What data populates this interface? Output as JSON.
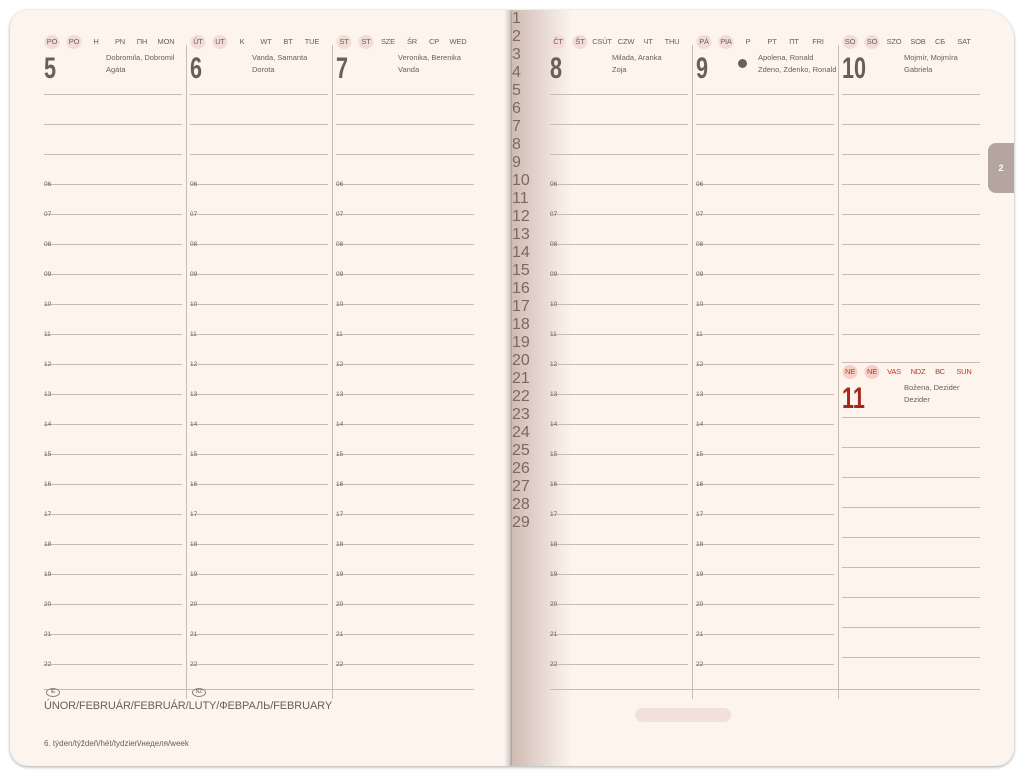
{
  "hours": [
    "06",
    "07",
    "08",
    "09",
    "10",
    "11",
    "12",
    "13",
    "14",
    "15",
    "16",
    "17",
    "18",
    "19",
    "20",
    "21",
    "22"
  ],
  "days": [
    {
      "num": "5",
      "labels": [
        "PO",
        "PO",
        "H",
        "PN",
        "ПН",
        "MON"
      ],
      "holiday_idx": [
        0,
        1
      ],
      "names": [
        "Dobromila, Dobromil",
        "Agáta"
      ]
    },
    {
      "num": "6",
      "labels": [
        "ÚT",
        "UT",
        "K",
        "WT",
        "BT",
        "TUE"
      ],
      "holiday_idx": [
        0,
        1
      ],
      "names": [
        "Vanda, Samanta",
        "Dorota"
      ]
    },
    {
      "num": "7",
      "labels": [
        "ST",
        "ST",
        "SZE",
        "ŚR",
        "CP",
        "WED"
      ],
      "holiday_idx": [
        0,
        1
      ],
      "names": [
        "Veronika, Berenika",
        "Vanda"
      ]
    },
    {
      "num": "8",
      "labels": [
        "ČT",
        "ŠT",
        "CSÜT",
        "CZW",
        "ЧТ",
        "THU"
      ],
      "holiday_idx": [
        0,
        1
      ],
      "names": [
        "Milada, Aranka",
        "Zoja"
      ]
    },
    {
      "num": "9",
      "labels": [
        "PÁ",
        "PIA",
        "P",
        "PT",
        "ПТ",
        "FRI"
      ],
      "holiday_idx": [
        0,
        1
      ],
      "names": [
        "Apolena, Ronald",
        "Zdeno, Zdenko, Ronald"
      ],
      "moon": "new-moon-icon"
    },
    {
      "num": "10",
      "labels": [
        "SO",
        "SO",
        "SZO",
        "SOB",
        "СБ",
        "SAT"
      ],
      "holiday_idx": [
        0,
        1
      ],
      "names": [
        "Mojmír, Mojmíra",
        "Gabriela"
      ]
    },
    {
      "num": "11",
      "labels": [
        "NE",
        "NE",
        "VAS",
        "NDZ",
        "ВС",
        "SUN"
      ],
      "holiday_idx": [
        0,
        1
      ],
      "names": [
        "Božena, Dezider",
        "Dezider"
      ]
    }
  ],
  "badges": [
    "IE",
    "NZ"
  ],
  "month": "ÚNOR/FEBRUÁR/FEBRUÁR/LUTY/ФЕВРАЛЬ/FEBRUARY",
  "week": "6. týden/týždeň/hét/tydzień/неделя/week",
  "strip": {
    "days": [
      "1",
      "2",
      "3",
      "4",
      "5",
      "6",
      "7",
      "8",
      "9",
      "10",
      "11",
      "12",
      "13",
      "14",
      "15",
      "16",
      "17",
      "18",
      "19",
      "20",
      "21",
      "22",
      "23",
      "24",
      "25",
      "26",
      "27",
      "28",
      "29"
    ],
    "red": [
      "4",
      "11",
      "18",
      "25"
    ],
    "highlight": [
      "5",
      "11"
    ]
  },
  "tab": "2",
  "colors": {
    "paper": "#fdf4ee",
    "ink": "#6b5e58",
    "sunday": "#a8271d",
    "tab": "#b4a69f"
  }
}
